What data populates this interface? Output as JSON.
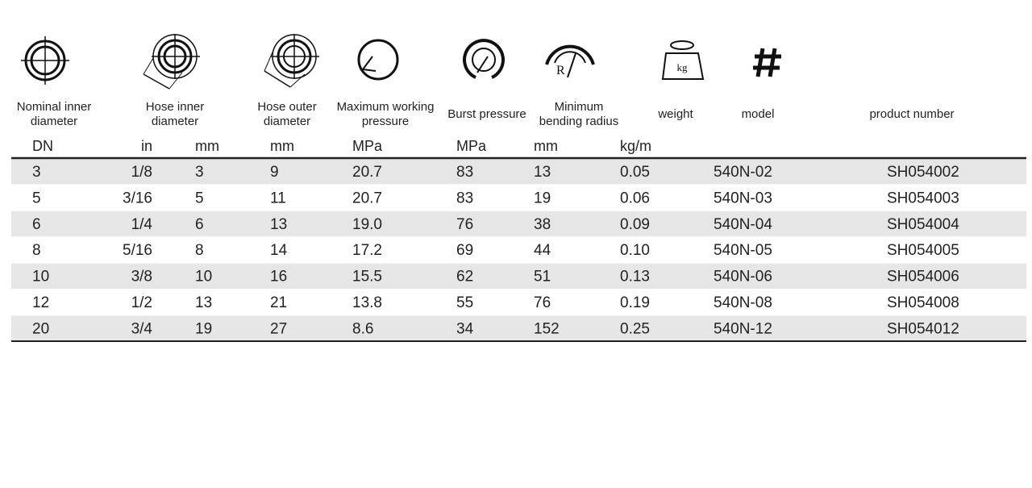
{
  "icons": {
    "weight": "kg",
    "radius": "R"
  },
  "headers": [
    [
      "Nominal inner",
      "diameter"
    ],
    [
      "Hose inner",
      "diameter"
    ],
    [
      "Hose outer",
      "diameter"
    ],
    [
      "Maximum working",
      "pressure"
    ],
    [
      "Burst pressure"
    ],
    [
      "Minimum",
      "bending radius"
    ],
    [
      "weight"
    ],
    [
      "model"
    ],
    [
      "product number"
    ]
  ],
  "units": [
    "DN",
    "in",
    "mm",
    "mm",
    "MPa",
    "MPa",
    "mm",
    "kg/m"
  ],
  "table": {
    "rows": [
      [
        "3",
        "1/8",
        "3",
        "9",
        "20.7",
        "83",
        "13",
        "0.05",
        "540N-02",
        "SH054002"
      ],
      [
        "5",
        "3/16",
        "5",
        "11",
        "20.7",
        "83",
        "19",
        "0.06",
        "540N-03",
        "SH054003"
      ],
      [
        "6",
        "1/4",
        "6",
        "13",
        "19.0",
        "76",
        "38",
        "0.09",
        "540N-04",
        "SH054004"
      ],
      [
        "8",
        "5/16",
        "8",
        "14",
        "17.2",
        "69",
        "44",
        "0.10",
        "540N-05",
        "SH054005"
      ],
      [
        "10",
        "3/8",
        "10",
        "16",
        "15.5",
        "62",
        "51",
        "0.13",
        "540N-06",
        "SH054006"
      ],
      [
        "12",
        "1/2",
        "13",
        "21",
        "13.8",
        "55",
        "76",
        "0.19",
        "540N-08",
        "SH054008"
      ],
      [
        "20",
        "3/4",
        "19",
        "27",
        "8.6",
        "34",
        "152",
        "0.25",
        "540N-12",
        "SH054012"
      ]
    ]
  }
}
